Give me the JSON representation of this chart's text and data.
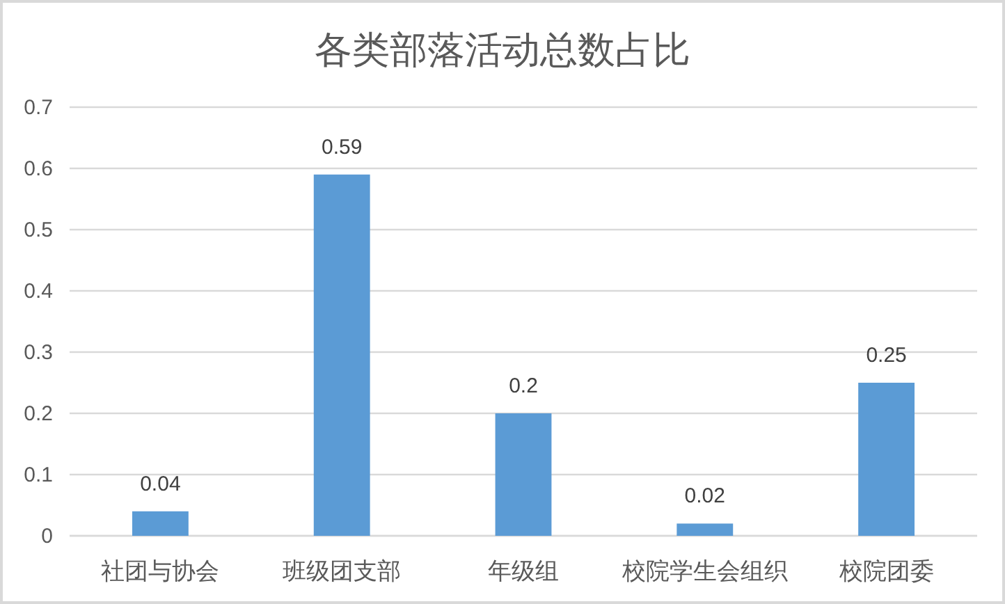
{
  "chart_data": {
    "type": "bar",
    "title": "各类部落活动总数占比",
    "categories": [
      "社团与协会",
      "班级团支部",
      "年级组",
      "校院学生会组织",
      "校院团委"
    ],
    "values": [
      0.04,
      0.59,
      0.2,
      0.02,
      0.25
    ],
    "color": "#5b9bd5",
    "ylim": [
      0,
      0.7
    ],
    "yticks": [
      0,
      0.1,
      0.2,
      0.3,
      0.4,
      0.5,
      0.6,
      0.7
    ],
    "grid": "y",
    "data_labels": true
  }
}
